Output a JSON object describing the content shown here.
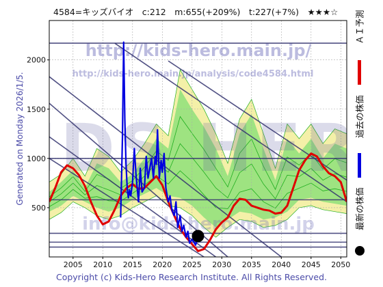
{
  "header": {
    "title": "4584=キッズバイオ　c:212　m:655(+209%)　t:227(+7%)　★★★☆"
  },
  "side_text": "Generated on Monday 2026/1/5.",
  "watermarks": {
    "url_main": "http://kids-hero.main.jp/",
    "url_page": "http://kids-hero.main.jp/analysis/code4584.html",
    "logo": "KIDS HERO",
    "email": "info@kids-hero.main.jp"
  },
  "footer": "Copyright (c) Kids-Hero Research Institute. All Rights Reserved.",
  "legend": [
    {
      "label": "ＡＩ予測",
      "color": "#e00000",
      "marker": "bar"
    },
    {
      "label": "過去の株価",
      "color": "#0000e0",
      "marker": "bar"
    },
    {
      "label": "最新の株価",
      "color": "#000000",
      "marker": "dot"
    }
  ],
  "colors": {
    "band_outer": "#f4f0a8",
    "band_inner": "#8ee07a",
    "band_lines": "#1fae1f",
    "ai_prediction": "#e00000",
    "past_price": "#0000e0",
    "diagonal_lines": "#33336e",
    "horizontal_lines": "#33336e",
    "grid": "#aaaaaa"
  },
  "chart_data": {
    "type": "line",
    "xlim": [
      2001,
      2051
    ],
    "ylim": [
      0,
      2400
    ],
    "xticks": [
      "2005",
      "2010",
      "2015",
      "2020",
      "2025",
      "2030",
      "2035",
      "2040",
      "2045",
      "2050"
    ],
    "yticks": [
      "500",
      "1000",
      "1500",
      "2000"
    ],
    "grid": true,
    "latest_price": {
      "x": 2026.0,
      "y": 212
    },
    "horizontal_levels": [
      2170,
      1000,
      580,
      240,
      150,
      100
    ],
    "diagonal_lines": [
      {
        "x": [
          2001,
          2031
        ],
        "y": [
          1560,
          0
        ]
      },
      {
        "x": [
          2001,
          2029
        ],
        "y": [
          1220,
          0
        ]
      },
      {
        "x": [
          2001,
          2027
        ],
        "y": [
          1000,
          0
        ]
      },
      {
        "x": [
          2001,
          2040
        ],
        "y": [
          1830,
          0
        ]
      },
      {
        "x": [
          2012,
          2051
        ],
        "y": [
          2170,
          560
        ]
      },
      {
        "x": [
          2021,
          2051
        ],
        "y": [
          1990,
          780
        ]
      }
    ],
    "series": [
      {
        "name": "ＡＩ予測",
        "x": [
          2001,
          2002,
          2003,
          2004,
          2005,
          2006,
          2007,
          2008,
          2009,
          2010,
          2011,
          2012,
          2013,
          2014,
          2015,
          2016,
          2017,
          2018,
          2019,
          2020,
          2021,
          2022,
          2023,
          2024,
          2025,
          2026,
          2027,
          2028,
          2029,
          2030,
          2031,
          2032,
          2033,
          2034,
          2035,
          2036,
          2037,
          2038,
          2039,
          2040,
          2041,
          2042,
          2043,
          2044,
          2045,
          2046,
          2047,
          2048,
          2049,
          2050,
          2051
        ],
        "y": [
          560,
          700,
          860,
          930,
          900,
          830,
          720,
          560,
          420,
          330,
          360,
          480,
          620,
          700,
          740,
          690,
          700,
          760,
          820,
          730,
          560,
          420,
          290,
          200,
          130,
          60,
          80,
          170,
          280,
          350,
          400,
          520,
          590,
          580,
          520,
          500,
          480,
          470,
          440,
          450,
          520,
          700,
          880,
          980,
          1050,
          1020,
          920,
          850,
          820,
          760,
          560
        ]
      },
      {
        "name": "過去の株価",
        "x": [
          2013.0,
          2013.3,
          2013.5,
          2013.7,
          2013.9,
          2014.1,
          2014.3,
          2014.5,
          2014.7,
          2015.0,
          2015.3,
          2015.6,
          2016.0,
          2016.3,
          2016.6,
          2017.0,
          2017.3,
          2017.6,
          2017.9,
          2018.2,
          2018.5,
          2018.8,
          2019.0,
          2019.2,
          2019.5,
          2019.8,
          2020.0,
          2020.3,
          2020.6,
          2021.0,
          2021.3,
          2021.6,
          2022.0,
          2022.3,
          2022.6,
          2023.0,
          2023.3,
          2023.6,
          2024.0,
          2024.3,
          2024.6,
          2025.0,
          2025.3,
          2025.6,
          2026.0
        ],
        "y": [
          400,
          1200,
          2180,
          1400,
          950,
          700,
          600,
          680,
          620,
          760,
          1100,
          820,
          560,
          900,
          660,
          700,
          1020,
          800,
          900,
          1000,
          800,
          1020,
          940,
          1290,
          800,
          980,
          860,
          1050,
          700,
          560,
          620,
          480,
          420,
          560,
          300,
          420,
          260,
          320,
          200,
          260,
          140,
          180,
          150,
          120,
          212
        ]
      }
    ],
    "bands": {
      "outer_upper": [
        [
          2001,
          760
        ],
        [
          2003,
          840
        ],
        [
          2005,
          1000
        ],
        [
          2007,
          820
        ],
        [
          2009,
          1100
        ],
        [
          2011,
          1020
        ],
        [
          2013,
          860
        ],
        [
          2015,
          980
        ],
        [
          2017,
          1150
        ],
        [
          2019,
          1350
        ],
        [
          2021,
          1230
        ],
        [
          2023,
          1900
        ],
        [
          2025,
          1700
        ],
        [
          2027,
          1500
        ],
        [
          2029,
          1250
        ],
        [
          2031,
          950
        ],
        [
          2033,
          1400
        ],
        [
          2035,
          1600
        ],
        [
          2037,
          1250
        ],
        [
          2039,
          900
        ],
        [
          2041,
          1350
        ],
        [
          2043,
          1200
        ],
        [
          2045,
          1350
        ],
        [
          2047,
          1150
        ],
        [
          2049,
          1300
        ],
        [
          2051,
          1250
        ]
      ],
      "outer_lower": [
        [
          2001,
          380
        ],
        [
          2003,
          450
        ],
        [
          2005,
          560
        ],
        [
          2007,
          500
        ],
        [
          2009,
          420
        ],
        [
          2011,
          380
        ],
        [
          2013,
          420
        ],
        [
          2015,
          500
        ],
        [
          2017,
          560
        ],
        [
          2019,
          620
        ],
        [
          2021,
          520
        ],
        [
          2023,
          500
        ],
        [
          2025,
          420
        ],
        [
          2027,
          300
        ],
        [
          2029,
          200
        ],
        [
          2031,
          300
        ],
        [
          2033,
          380
        ],
        [
          2035,
          360
        ],
        [
          2037,
          300
        ],
        [
          2039,
          320
        ],
        [
          2041,
          380
        ],
        [
          2043,
          500
        ],
        [
          2045,
          520
        ],
        [
          2047,
          480
        ],
        [
          2049,
          460
        ],
        [
          2051,
          440
        ]
      ],
      "inner_upper": [
        [
          2001,
          660
        ],
        [
          2003,
          760
        ],
        [
          2005,
          880
        ],
        [
          2007,
          700
        ],
        [
          2009,
          950
        ],
        [
          2011,
          900
        ],
        [
          2013,
          760
        ],
        [
          2015,
          840
        ],
        [
          2017,
          1000
        ],
        [
          2019,
          1200
        ],
        [
          2021,
          1100
        ],
        [
          2023,
          1700
        ],
        [
          2025,
          1500
        ],
        [
          2027,
          1320
        ],
        [
          2029,
          1100
        ],
        [
          2031,
          820
        ],
        [
          2033,
          1250
        ],
        [
          2035,
          1450
        ],
        [
          2037,
          1100
        ],
        [
          2039,
          780
        ],
        [
          2041,
          1200
        ],
        [
          2043,
          1050
        ],
        [
          2045,
          1200
        ],
        [
          2047,
          1000
        ],
        [
          2049,
          1150
        ],
        [
          2051,
          1100
        ]
      ],
      "inner_lower": [
        [
          2001,
          460
        ],
        [
          2003,
          520
        ],
        [
          2005,
          620
        ],
        [
          2007,
          560
        ],
        [
          2009,
          500
        ],
        [
          2011,
          460
        ],
        [
          2013,
          500
        ],
        [
          2015,
          580
        ],
        [
          2017,
          640
        ],
        [
          2019,
          700
        ],
        [
          2021,
          620
        ],
        [
          2023,
          600
        ],
        [
          2025,
          520
        ],
        [
          2027,
          400
        ],
        [
          2029,
          300
        ],
        [
          2031,
          380
        ],
        [
          2033,
          460
        ],
        [
          2035,
          440
        ],
        [
          2037,
          380
        ],
        [
          2039,
          400
        ],
        [
          2041,
          460
        ],
        [
          2043,
          580
        ],
        [
          2045,
          600
        ],
        [
          2047,
          560
        ],
        [
          2049,
          540
        ],
        [
          2051,
          520
        ]
      ]
    }
  }
}
